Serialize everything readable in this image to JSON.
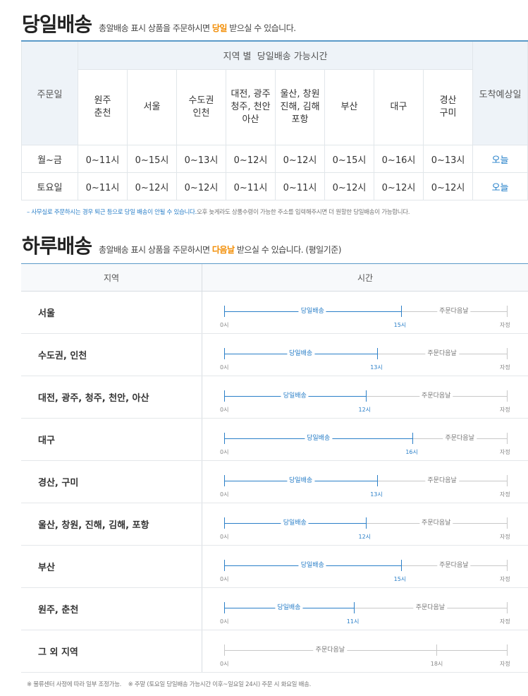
{
  "section1": {
    "title": "당일배송",
    "desc_pre": "총알배송 표시 상품을 주문하시면 ",
    "desc_hl": "당일",
    "desc_post": " 받으실 수 있습니다."
  },
  "table1": {
    "order_day_header": "주문일",
    "region_group_header": "지역 별  당일배송 가능시간",
    "arrival_header": "도착예상일",
    "regions": [
      [
        "원주",
        "춘천"
      ],
      [
        "서울"
      ],
      [
        "수도권",
        "인천"
      ],
      [
        "대전, 광주",
        "청주, 천안",
        "아산"
      ],
      [
        "울산, 창원",
        "진해, 김해",
        "포항"
      ],
      [
        "부산"
      ],
      [
        "대구"
      ],
      [
        "경산",
        "구미"
      ]
    ],
    "rows": [
      {
        "day": "월~금",
        "times": [
          "0~11시",
          "0~15시",
          "0~13시",
          "0~12시",
          "0~12시",
          "0~15시",
          "0~16시",
          "0~13시"
        ],
        "arrival": "오늘"
      },
      {
        "day": "토요일",
        "times": [
          "0~11시",
          "0~12시",
          "0~12시",
          "0~11시",
          "0~11시",
          "0~12시",
          "0~12시",
          "0~12시"
        ],
        "arrival": "오늘"
      }
    ]
  },
  "note1": {
    "blue": "– 사무실로 주문하시는 경우 퇴근 등으로 당일 배송이 안될 수 있습니다.",
    "gray": "오후 늦게라도 상품수령이 가능한 주소를 입력해주시면 더 원할한 당일배송이 가능합니다."
  },
  "section2": {
    "title": "하루배송",
    "desc_pre": "총알배송 표시 상품을 주문하시면 ",
    "desc_hl": "다음날",
    "desc_post": " 받으실 수 있습니다. (평일기준)"
  },
  "table2": {
    "col_region": "지역",
    "col_time": "시간",
    "label_same": "당일배송",
    "label_next": "주문다음날",
    "start": "0시",
    "end": "자정",
    "rows": [
      {
        "region": "서울",
        "cutoff": 15,
        "cutoff_label": "15시"
      },
      {
        "region": "수도권, 인천",
        "cutoff": 13,
        "cutoff_label": "13시"
      },
      {
        "region": "대전, 광주, 청주, 천안, 아산",
        "cutoff": 12,
        "cutoff_label": "12시"
      },
      {
        "region": "대구",
        "cutoff": 16,
        "cutoff_label": "16시"
      },
      {
        "region": "경산, 구미",
        "cutoff": 13,
        "cutoff_label": "13시"
      },
      {
        "region": "울산, 창원, 진해, 김해, 포항",
        "cutoff": 12,
        "cutoff_label": "12시"
      },
      {
        "region": "부산",
        "cutoff": 15,
        "cutoff_label": "15시"
      },
      {
        "region": "원주, 춘천",
        "cutoff": 11,
        "cutoff_label": "11시"
      },
      {
        "region": "그 외 지역",
        "cutoff": 18,
        "cutoff_label": "18시",
        "no_same_day": true
      }
    ]
  },
  "note2": {
    "a": "※ 물류센터 사정에 따라 일부 조정가능.",
    "b": "※ 주말 (토요일 당일배송 가능시간 이후~일요일 24시) 주문 시 화요일 배송."
  },
  "colors": {
    "accent": "#f28c00",
    "blue": "#2a7fc8",
    "line_gray": "#c8c8c8"
  }
}
